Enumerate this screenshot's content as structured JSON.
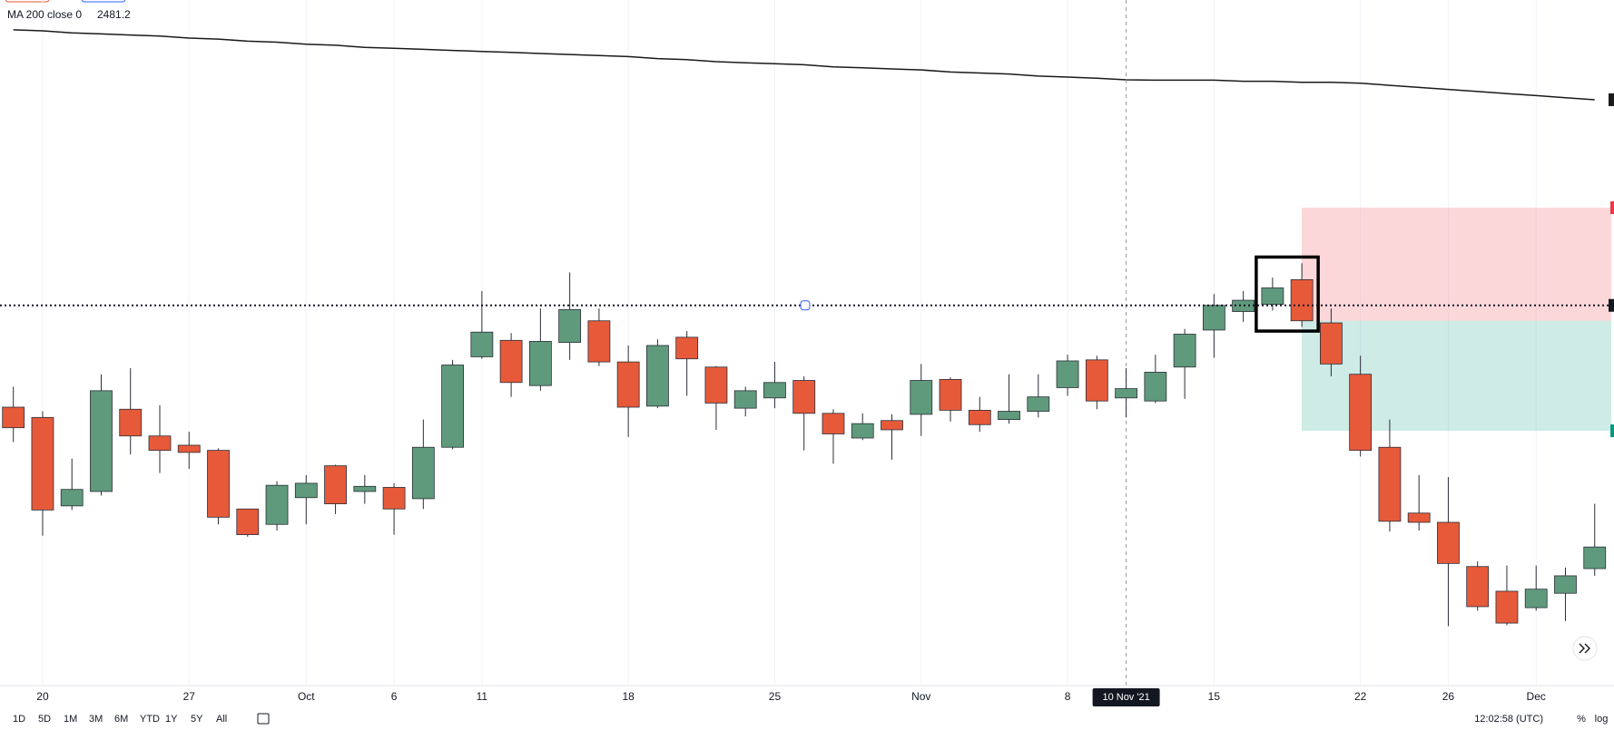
{
  "chart_data": {
    "type": "candlestick",
    "categories": [
      null,
      "20",
      null,
      null,
      null,
      null,
      "27",
      null,
      null,
      null,
      "Oct",
      null,
      null,
      "6",
      null,
      null,
      "11",
      null,
      null,
      null,
      null,
      "18",
      null,
      null,
      null,
      null,
      "25",
      null,
      null,
      null,
      null,
      "Nov",
      null,
      null,
      null,
      null,
      "8",
      null,
      "10 Nov '21",
      null,
      null,
      "15",
      null,
      null,
      null,
      null,
      "22",
      null,
      null,
      "26",
      null,
      null,
      "Dec",
      null,
      null
    ],
    "open": [
      2322,
      2317,
      2274,
      2281,
      2321,
      2308,
      2303.5,
      2301,
      2272.5,
      2265,
      2278,
      2293.5,
      2281,
      2283,
      2277.5,
      2302.5,
      2346.5,
      2354.5,
      2332.5,
      2353.5,
      2364,
      2344,
      2322.5,
      2356,
      2341.5,
      2321.5,
      2326.5,
      2335,
      2319,
      2307,
      2315.5,
      2318.5,
      2335.5,
      2320.5,
      2316,
      2320,
      2331.5,
      2345,
      2326.5,
      2325,
      2341.5,
      2359.5,
      2368.5,
      2372,
      2384,
      2363,
      2338,
      2302.5,
      2270.5,
      2266,
      2244.5,
      2232.5,
      2224.5,
      2231.5,
      2243.5
    ],
    "high": [
      2332,
      2320,
      2297,
      2338,
      2341,
      2323,
      2310,
      2302,
      2272.5,
      2286,
      2289,
      2294,
      2289,
      2285,
      2316,
      2345,
      2378.5,
      2358,
      2370,
      2387.5,
      2370,
      2352,
      2355,
      2359,
      2342,
      2332,
      2344,
      2337,
      2321,
      2319,
      2318.5,
      2343,
      2336.5,
      2327,
      2338,
      2338,
      2347.5,
      2347,
      2341,
      2347.5,
      2360,
      2377,
      2378.5,
      2385,
      2392,
      2370,
      2347,
      2316,
      2289,
      2288,
      2247,
      2245,
      2245,
      2244,
      2275
    ],
    "low": [
      2305,
      2259.5,
      2272,
      2279,
      2299,
      2290,
      2292,
      2265,
      2259,
      2262,
      2265,
      2270,
      2275,
      2260,
      2272.5,
      2301.5,
      2345.5,
      2327,
      2330,
      2345,
      2342,
      2307.5,
      2321.5,
      2327.5,
      2311,
      2317.5,
      2321.5,
      2301,
      2294.5,
      2306,
      2296.5,
      2308,
      2315,
      2310,
      2314,
      2317,
      2327.5,
      2321,
      2317,
      2324,
      2326,
      2346,
      2363.5,
      2369,
      2361,
      2337,
      2298,
      2261.5,
      2262,
      2215.5,
      2223,
      2216,
      2223,
      2218,
      2240
    ],
    "close": [
      2312,
      2272,
      2282,
      2330,
      2308,
      2301,
      2300,
      2268.5,
      2260,
      2284,
      2285,
      2275,
      2283.5,
      2272.5,
      2302.5,
      2342.5,
      2358.5,
      2334,
      2354,
      2369.5,
      2344,
      2322,
      2352,
      2345.5,
      2324,
      2330,
      2334,
      2319,
      2309,
      2314,
      2311,
      2335,
      2320.5,
      2313.5,
      2320,
      2327,
      2344.5,
      2325,
      2331,
      2339,
      2357.5,
      2371.5,
      2374,
      2380,
      2364,
      2343,
      2301,
      2266.5,
      2266,
      2246,
      2225,
      2217,
      2233.5,
      2240,
      2254
    ],
    "up_color": "#5f9a7c",
    "down_color": "#e65a3a",
    "ma": {
      "name": "MA 200 close 0",
      "color": "#1a1a1a",
      "values": [
        2505.5,
        2505,
        2504,
        2503.5,
        2503,
        2502.5,
        2501.5,
        2501,
        2500,
        2499.5,
        2498.5,
        2498,
        2497,
        2496.5,
        2496,
        2495.5,
        2495,
        2494.5,
        2494,
        2493.5,
        2493,
        2492.5,
        2491.5,
        2491,
        2490,
        2489.5,
        2489,
        2488.5,
        2487.5,
        2487,
        2486.5,
        2486,
        2485,
        2484.5,
        2484,
        2483,
        2482.5,
        2482,
        2481.2,
        2481,
        2481,
        2481,
        2480.5,
        2480.5,
        2480,
        2480,
        2479.5,
        2478.5,
        2477.5,
        2476.5,
        2475.5,
        2474.5,
        2473.5,
        2472.5,
        2471.5
      ]
    },
    "horizontal_line": 2371.5,
    "position": {
      "stop": 2419,
      "entry": 2364,
      "target": 2310.5
    },
    "ylim": [
      2187.5,
      2520
    ],
    "grid": true
  },
  "ui": {
    "intervals": [
      "1D",
      "5D",
      "1M",
      "3M",
      "6M",
      "YTD",
      "1Y",
      "5Y",
      "All"
    ],
    "clock": "12:02:58 (UTC)",
    "percent": "%",
    "log": "log"
  }
}
